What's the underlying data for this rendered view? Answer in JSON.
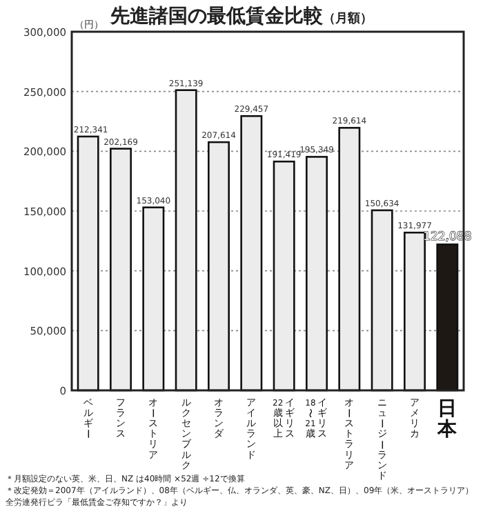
{
  "chart_data": {
    "type": "bar",
    "title": "先進諸国の最低賃金比較",
    "subtitle": "（月額）",
    "ylabel": "（円）",
    "categories": [
      "ベルギー",
      "フランス",
      "オーストリア",
      "ルクセンブルク",
      "オランダ",
      "アイルランド",
      "イギリス 22歳以上",
      "イギリス 18〜21歳",
      "オーストラリア",
      "ニュージーランド",
      "アメリカ",
      "日本"
    ],
    "values": [
      212341,
      202169,
      153040,
      251139,
      207614,
      229457,
      191419,
      195349,
      219614,
      150634,
      131977,
      122088
    ],
    "colors": [
      "#ececec",
      "#ececec",
      "#ececec",
      "#ececec",
      "#ececec",
      "#ececec",
      "#ececec",
      "#ececec",
      "#ececec",
      "#ececec",
      "#ececec",
      "#1e1814"
    ],
    "ylim": [
      0,
      300000
    ],
    "yticks": [
      {
        "value": 0,
        "label": "0"
      },
      {
        "value": 50000,
        "label": "50,000"
      },
      {
        "value": 100000,
        "label": "100,000"
      },
      {
        "value": 150000,
        "label": "150,000"
      },
      {
        "value": 200000,
        "label": "200,000"
      },
      {
        "value": 250000,
        "label": "250,000"
      },
      {
        "value": 300000,
        "label": "300,000"
      }
    ],
    "value_labels": [
      "212,341",
      "202,169",
      "153,040",
      "251,139",
      "207,614",
      "229,457",
      "191,419",
      "195,349",
      "219,614",
      "150,634",
      "131,977",
      "122,088"
    ],
    "grid": "y",
    "annotations": [
      "＊月額設定のない英、米、日、NZ は40時間 ×52週 ÷12で換算",
      "＊改定発効＝2007年（アイルランド）、08年（ベルギー、仏、オランダ、英、豪、NZ、日）、09年（米、オーストラリア）",
      "全労連発行ビラ「最低賃金ご存知ですか？」より"
    ]
  }
}
